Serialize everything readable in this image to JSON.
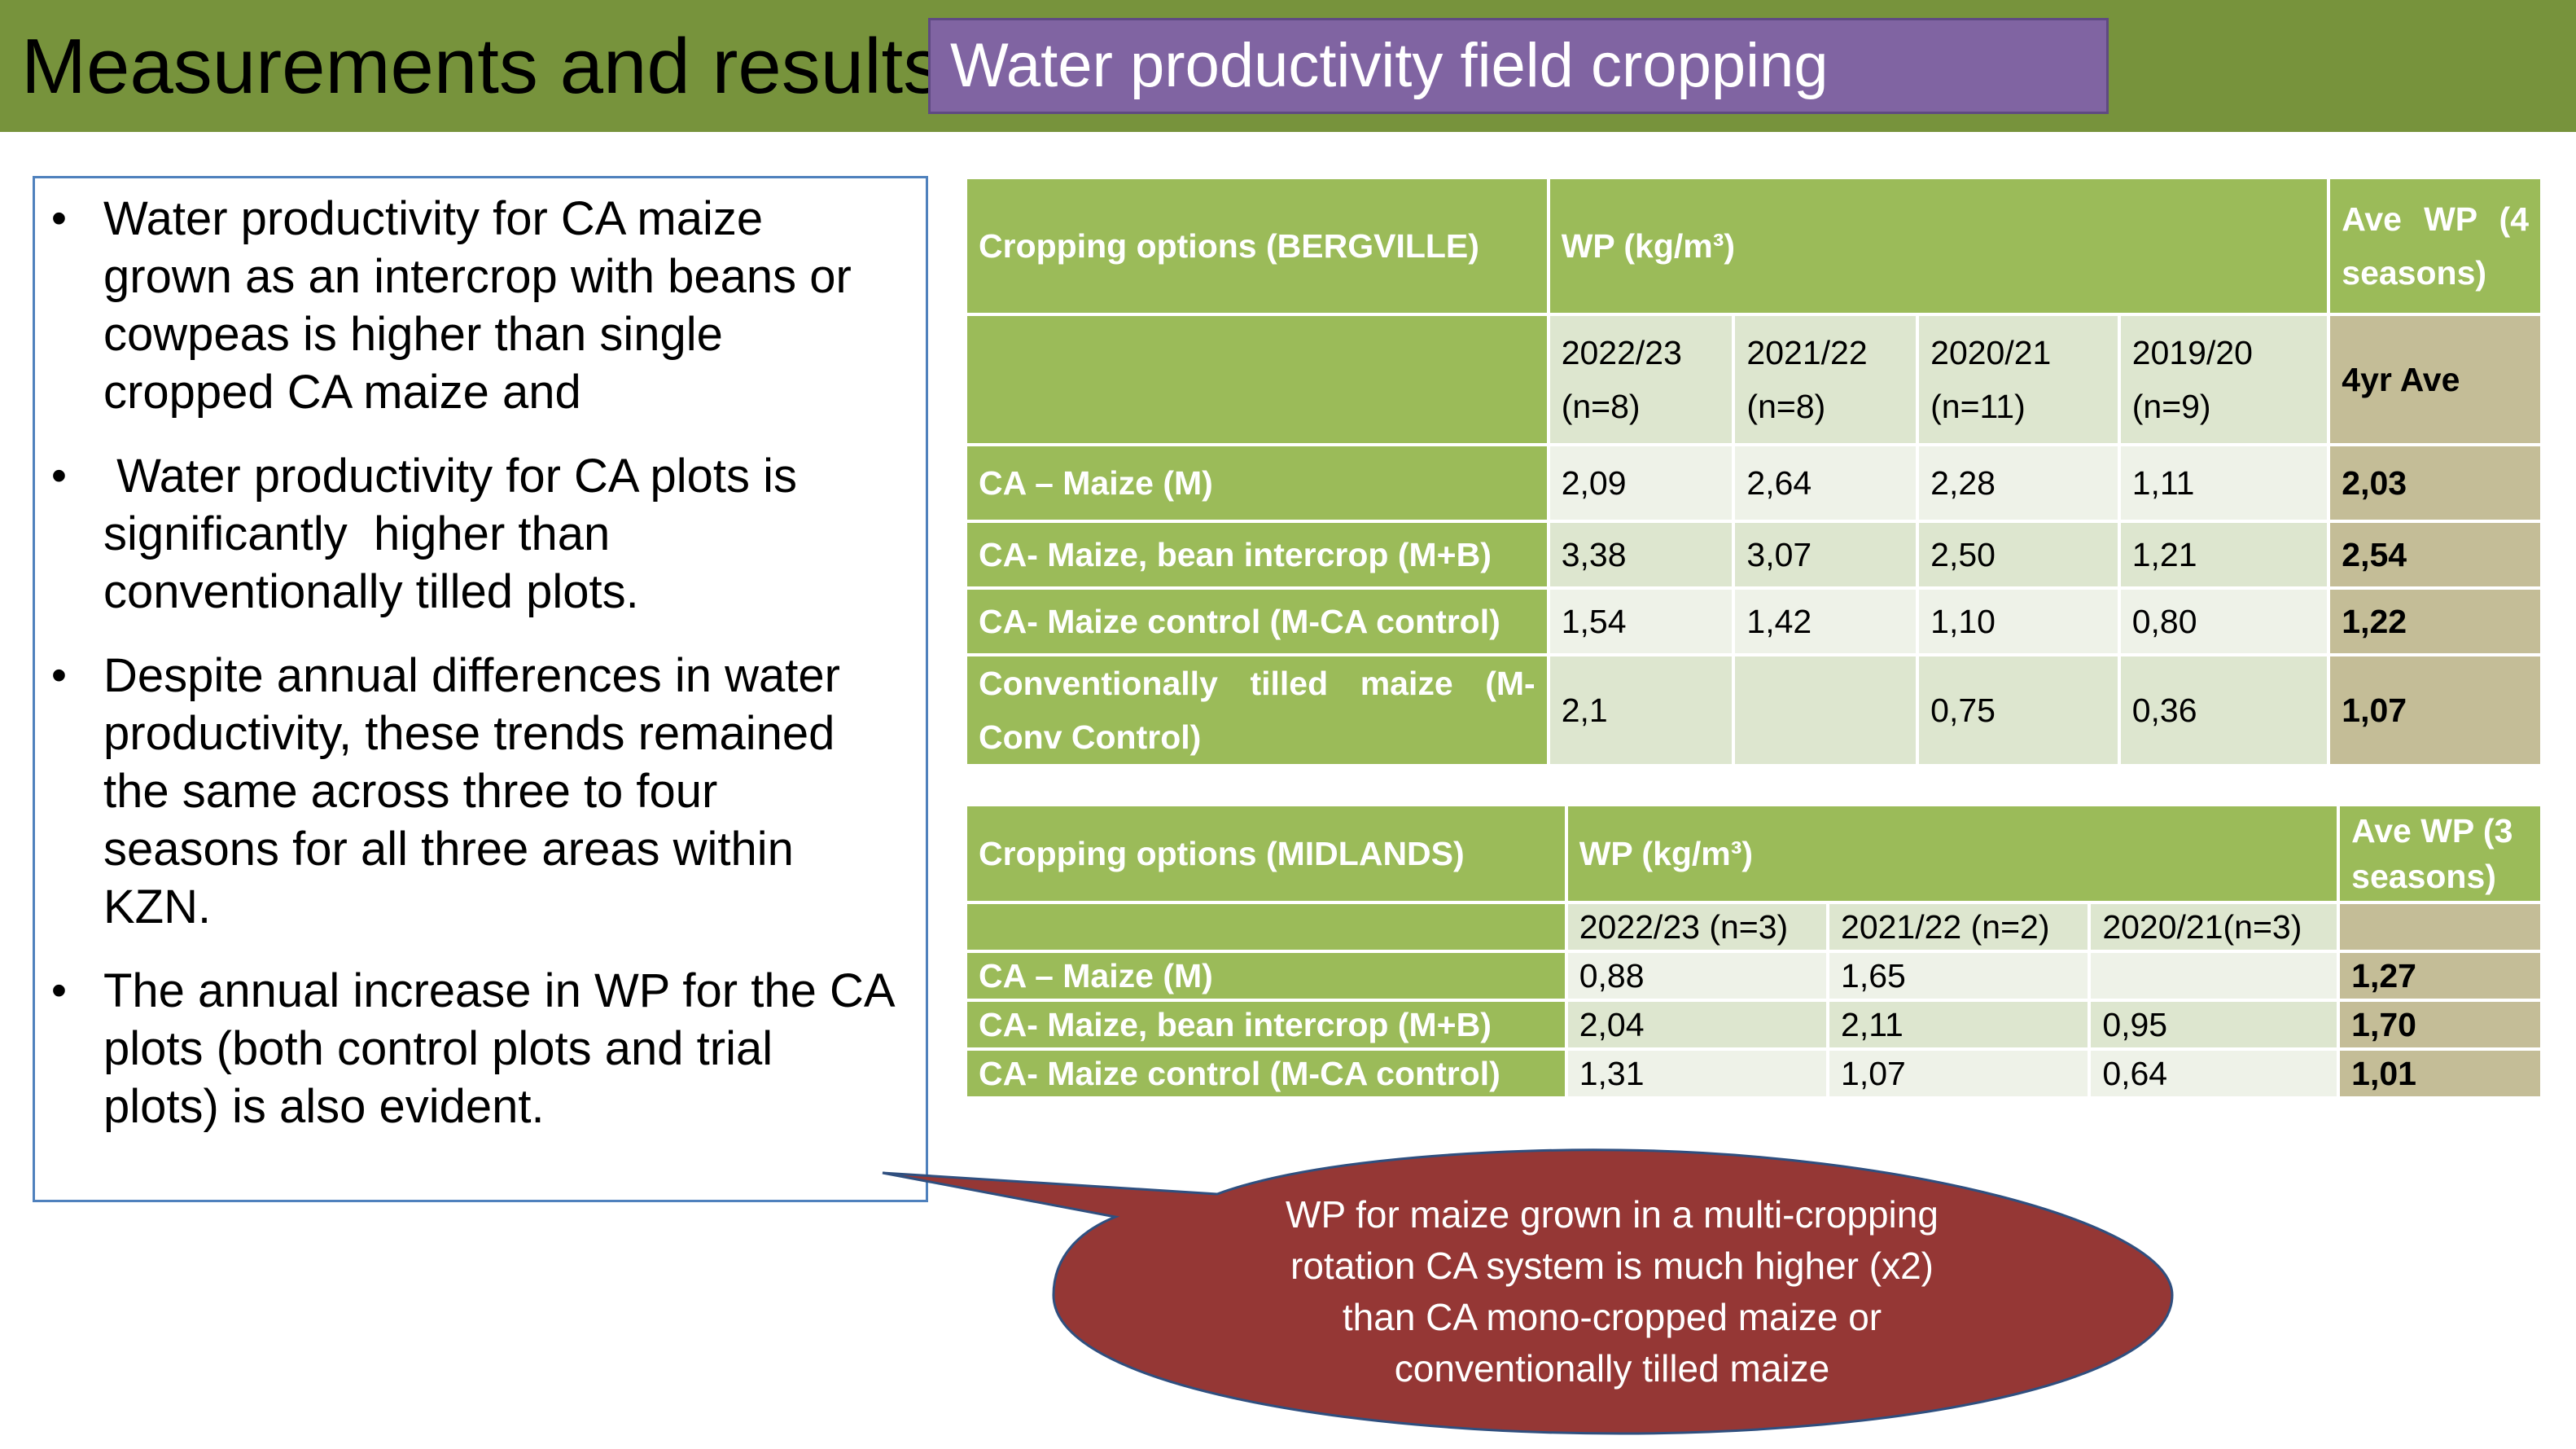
{
  "header": {
    "title": "Measurements and results",
    "subtitle": "Water productivity field cropping"
  },
  "bullets": [
    "Water productivity for CA maize grown as an intercrop with beans or cowpeas is higher than single cropped CA maize and",
    " Water productivity for CA plots is significantly  higher than conventionally tilled plots.",
    "Despite annual differences in water productivity, these trends remained the same across three to four seasons for all three areas within KZN.",
    "The annual increase in WP for the CA plots (both control plots and trial plots) is also evident."
  ],
  "bullet_symbol": "•",
  "bergville": {
    "header_options": "Cropping options (BERGVILLE)",
    "header_wp": "WP (kg/m³)",
    "header_ave": "Ave  WP  (4 seasons)",
    "seasons": [
      "2022/23 (n=8)",
      "2021/22 (n=8)",
      "2020/21 (n=11)",
      "2019/20 (n=9)"
    ],
    "ave_label": "4yr Ave",
    "rows": [
      {
        "option": "CA – Maize (M)",
        "values": [
          "2,09",
          "2,64",
          "2,28",
          "1,11"
        ],
        "ave": "2,03"
      },
      {
        "option": "CA- Maize, bean intercrop (M+B)",
        "values": [
          "3,38",
          "3,07",
          "2,50",
          "1,21"
        ],
        "ave": "2,54"
      },
      {
        "option": "CA- Maize control (M-CA control)",
        "values": [
          "1,54",
          "1,42",
          "1,10",
          "0,80"
        ],
        "ave": "1,22"
      },
      {
        "option": "Conventionally  tilled  maize  (M-Conv Control)",
        "values": [
          "2,1",
          "",
          "0,75",
          "0,36"
        ],
        "ave": "1,07"
      }
    ]
  },
  "midlands": {
    "header_options": "Cropping options (MIDLANDS)",
    "header_wp": "WP (kg/m³)",
    "header_ave": "Ave WP (3 seasons)",
    "seasons": [
      "2022/23 (n=3)",
      "2021/22 (n=2)",
      "2020/21(n=3)"
    ],
    "rows": [
      {
        "option": "CA – Maize (M)",
        "values": [
          "0,88",
          "1,65",
          ""
        ],
        "ave": "1,27"
      },
      {
        "option": "CA- Maize, bean intercrop (M+B)",
        "values": [
          "2,04",
          "2,11",
          "0,95"
        ],
        "ave": "1,70"
      },
      {
        "option": "CA- Maize control (M-CA control)",
        "values": [
          "1,31",
          "1,07",
          "0,64"
        ],
        "ave": "1,01"
      }
    ]
  },
  "callout": {
    "lines": [
      "WP for maize grown in a multi-cropping",
      "rotation CA system is much higher (x2)",
      "than CA mono-cropped maize or",
      "conventionally tilled maize"
    ]
  },
  "colors": {
    "header_green": "#77933c",
    "table_green": "#9bbb59",
    "tan": "#c4bd97",
    "purple": "#8064a2",
    "callout_red": "#953735",
    "border_blue": "#4f81bd"
  }
}
